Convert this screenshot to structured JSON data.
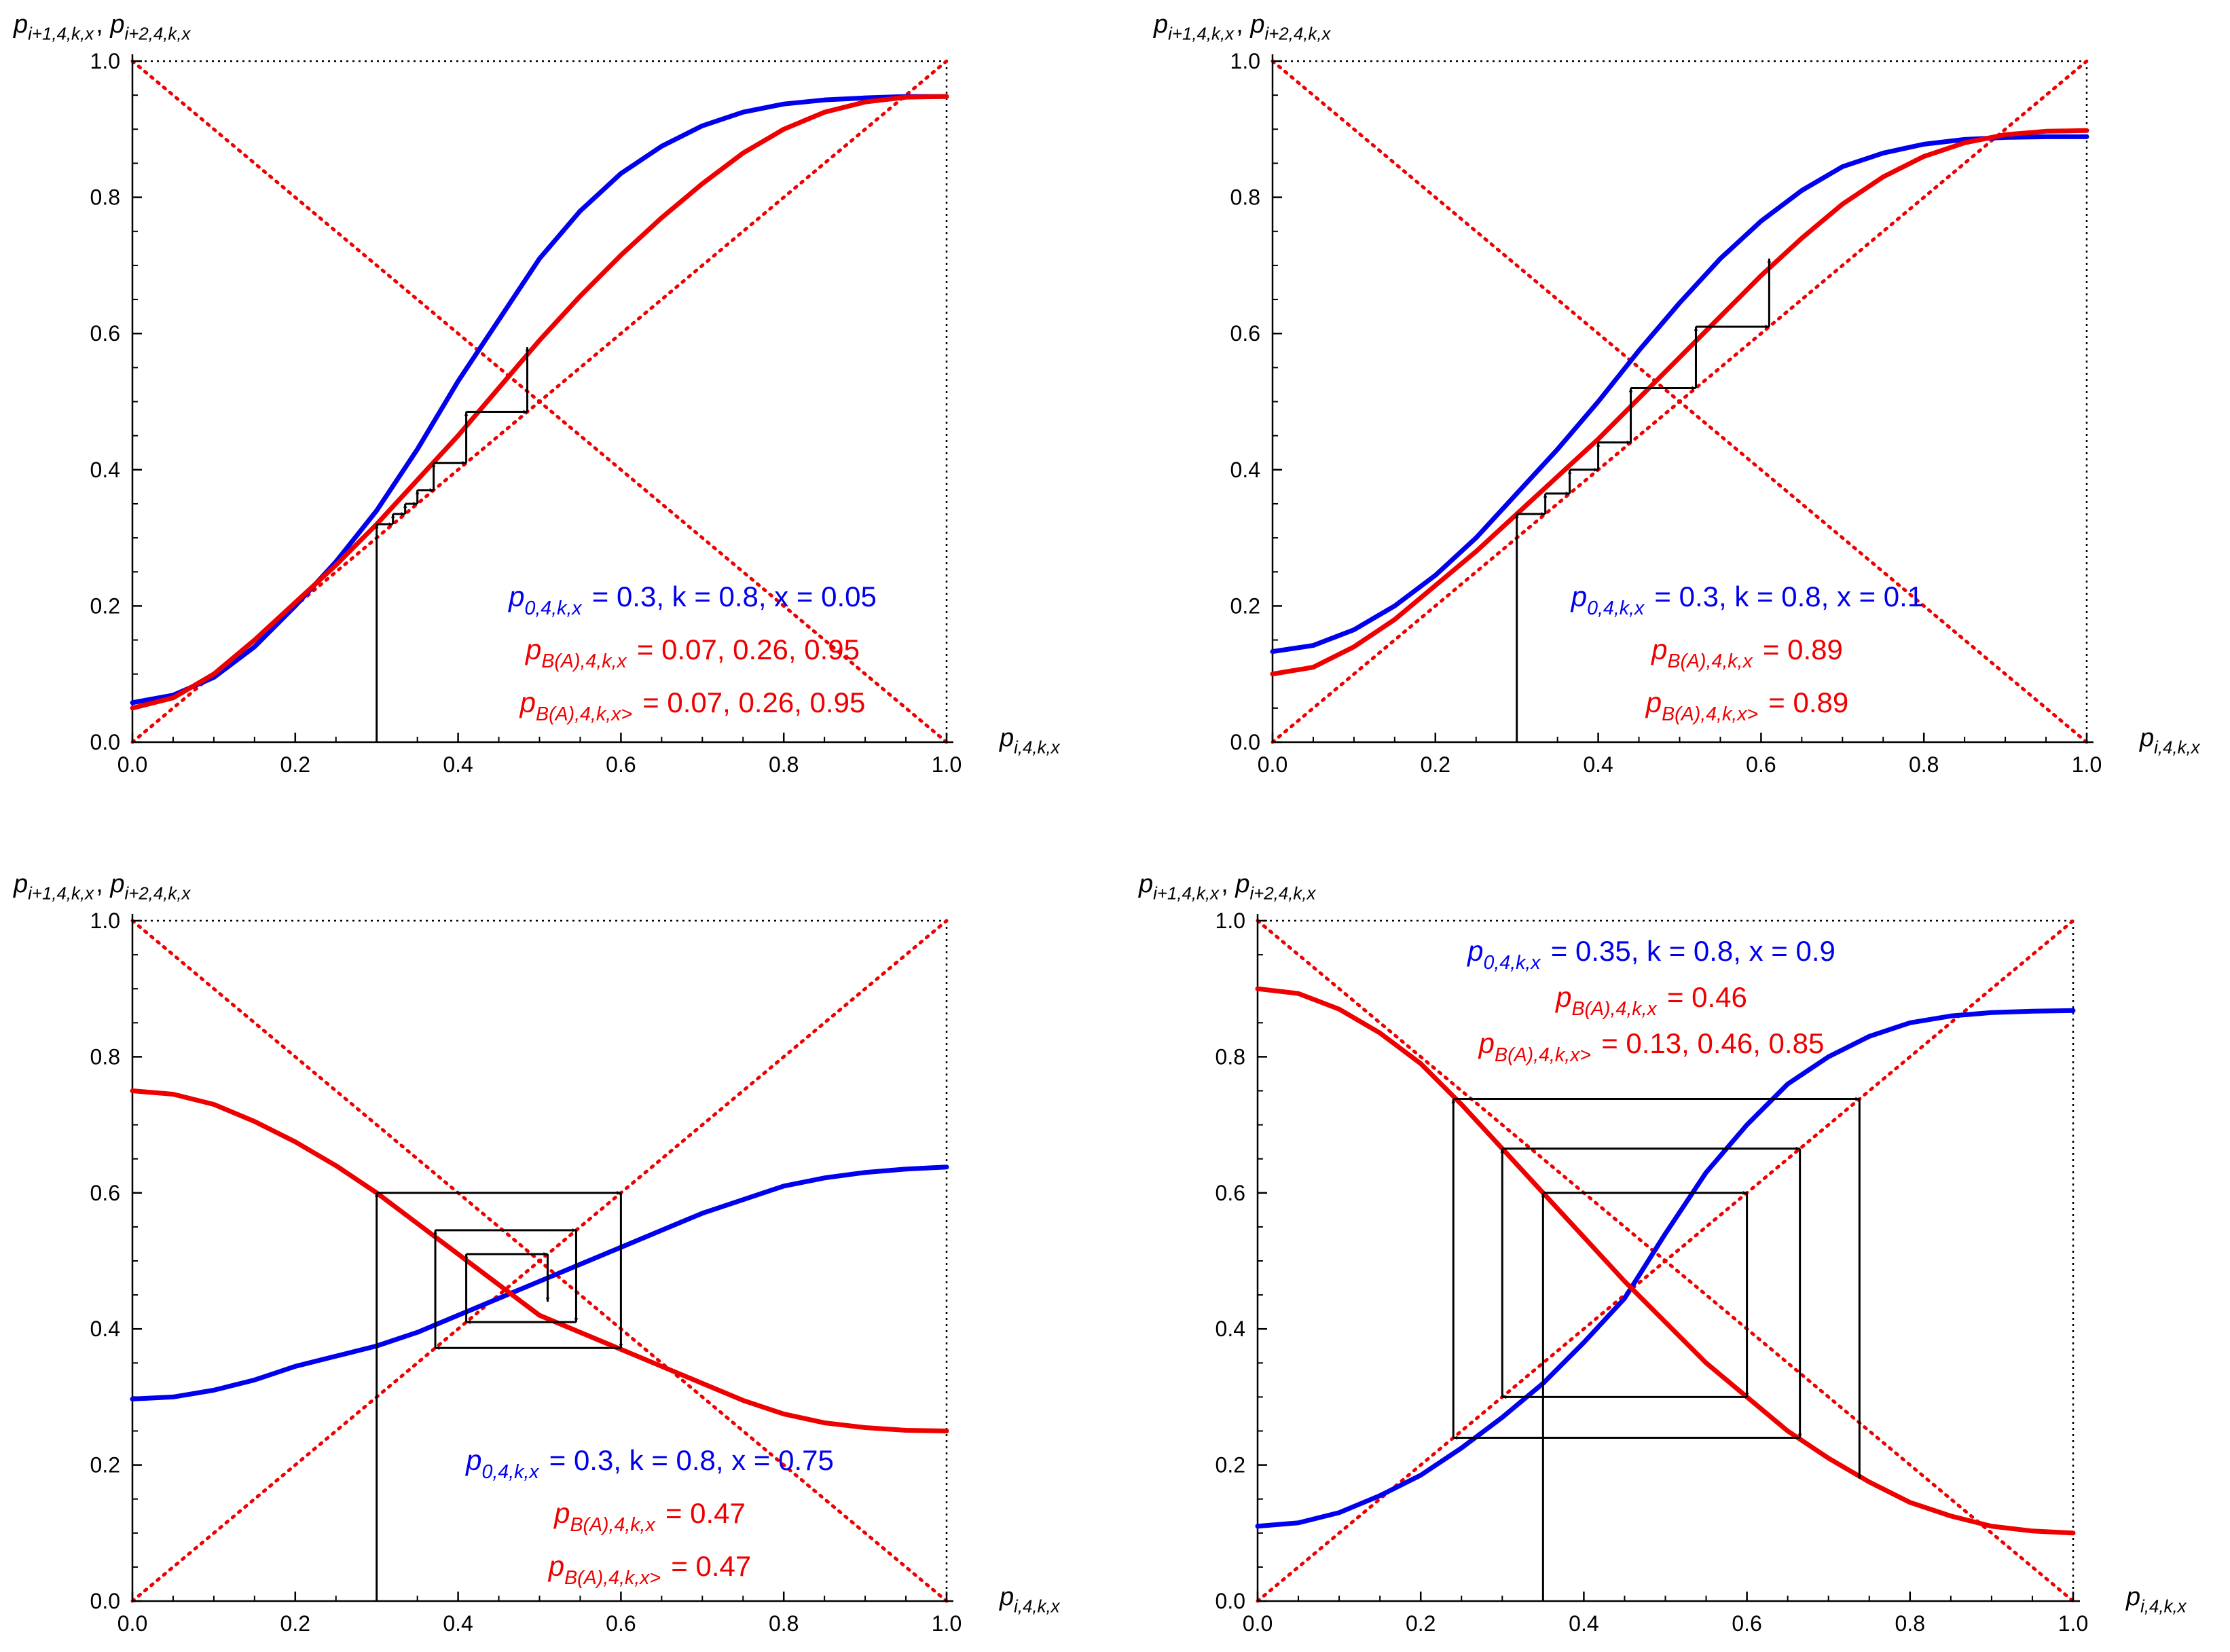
{
  "chart_data": [
    {
      "type": "line",
      "panel": "top-left",
      "xlabel": "p",
      "xlabel_sub": "i,4,k,x",
      "ylabel_parts": [
        {
          "t": "p",
          "sub": "i+1,4,k,x"
        },
        {
          "t": ", "
        },
        {
          "t": "p",
          "sub": "i+2,4,k,x"
        }
      ],
      "xlim": [
        0,
        1
      ],
      "ylim": [
        0,
        1
      ],
      "xticks": [
        "0.0",
        "0.2",
        "0.4",
        "0.6",
        "0.8",
        "1.0"
      ],
      "yticks": [
        "0.0",
        "0.2",
        "0.4",
        "0.6",
        "0.8",
        "1.0"
      ],
      "params": {
        "p0": 0.3,
        "k": 0.8,
        "x": 0.05
      },
      "series": [
        {
          "name": "p_i+2 (blue)",
          "color": "#0000ee",
          "width": 7,
          "x": [
            0,
            0.05,
            0.1,
            0.15,
            0.2,
            0.25,
            0.3,
            0.35,
            0.4,
            0.45,
            0.5,
            0.55,
            0.6,
            0.65,
            0.7,
            0.75,
            0.8,
            0.85,
            0.9,
            0.95,
            1.0
          ],
          "y": [
            0.058,
            0.069,
            0.095,
            0.14,
            0.2,
            0.265,
            0.34,
            0.43,
            0.53,
            0.62,
            0.71,
            0.78,
            0.835,
            0.875,
            0.905,
            0.925,
            0.937,
            0.943,
            0.946,
            0.948,
            0.948
          ]
        },
        {
          "name": "p_i+1 (red)",
          "color": "#ee0000",
          "width": 7,
          "x": [
            0,
            0.05,
            0.1,
            0.15,
            0.2,
            0.25,
            0.3,
            0.35,
            0.4,
            0.45,
            0.5,
            0.55,
            0.6,
            0.65,
            0.7,
            0.75,
            0.8,
            0.85,
            0.9,
            0.95,
            1.0
          ],
          "y": [
            0.05,
            0.065,
            0.1,
            0.15,
            0.205,
            0.26,
            0.32,
            0.385,
            0.45,
            0.52,
            0.59,
            0.655,
            0.715,
            0.77,
            0.82,
            0.865,
            0.9,
            0.925,
            0.94,
            0.947,
            0.948
          ]
        }
      ],
      "annotations": [
        {
          "color": "#0000ee",
          "parts": [
            {
              "t": "p",
              "sub": "0,4,k,x"
            },
            {
              "t": " = 0.3, k = 0.8, x = 0.05"
            }
          ]
        },
        {
          "color": "#ee0000",
          "parts": [
            {
              "t": "p",
              "sub": "B(A),4,k,x"
            },
            {
              "t": " = 0.07, 0.26, 0.95"
            }
          ]
        },
        {
          "color": "#ee0000",
          "parts": [
            {
              "t": "p",
              "sub": "B(A),4,k,x>"
            },
            {
              "t": " = 0.07, 0.26, 0.95"
            }
          ]
        }
      ],
      "cobweb": {
        "start": 0.3,
        "steps": [
          [
            0.3,
            0.32
          ],
          [
            0.32,
            0.335
          ],
          [
            0.335,
            0.35
          ],
          [
            0.35,
            0.37
          ],
          [
            0.37,
            0.41
          ],
          [
            0.41,
            0.485
          ],
          [
            0.485,
            0.58
          ]
        ]
      }
    },
    {
      "type": "line",
      "panel": "top-right",
      "xlabel": "p",
      "xlabel_sub": "i,4,k,x",
      "ylabel_parts": [
        {
          "t": "p",
          "sub": "i+1,4,k,x"
        },
        {
          "t": ", "
        },
        {
          "t": "p",
          "sub": "i+2,4,k,x"
        }
      ],
      "xlim": [
        0,
        1
      ],
      "ylim": [
        0,
        1
      ],
      "xticks": [
        "0.0",
        "0.2",
        "0.4",
        "0.6",
        "0.8",
        "1.0"
      ],
      "yticks": [
        "0.0",
        "0.2",
        "0.4",
        "0.6",
        "0.8",
        "1.0"
      ],
      "params": {
        "p0": 0.3,
        "k": 0.8,
        "x": 0.1
      },
      "series": [
        {
          "name": "p_i+2 (blue)",
          "color": "#0000ee",
          "width": 7,
          "x": [
            0,
            0.05,
            0.1,
            0.15,
            0.2,
            0.25,
            0.3,
            0.35,
            0.4,
            0.45,
            0.5,
            0.55,
            0.6,
            0.65,
            0.7,
            0.75,
            0.8,
            0.85,
            0.9,
            0.95,
            1.0
          ],
          "y": [
            0.133,
            0.142,
            0.165,
            0.2,
            0.245,
            0.3,
            0.365,
            0.43,
            0.5,
            0.575,
            0.645,
            0.71,
            0.765,
            0.81,
            0.845,
            0.865,
            0.878,
            0.885,
            0.888,
            0.889,
            0.889
          ]
        },
        {
          "name": "p_i+1 (red)",
          "color": "#ee0000",
          "width": 7,
          "x": [
            0,
            0.05,
            0.1,
            0.15,
            0.2,
            0.25,
            0.3,
            0.35,
            0.4,
            0.45,
            0.5,
            0.55,
            0.6,
            0.65,
            0.7,
            0.75,
            0.8,
            0.85,
            0.9,
            0.95,
            1.0
          ],
          "y": [
            0.1,
            0.11,
            0.14,
            0.18,
            0.23,
            0.28,
            0.335,
            0.39,
            0.445,
            0.505,
            0.565,
            0.625,
            0.685,
            0.74,
            0.79,
            0.83,
            0.86,
            0.88,
            0.892,
            0.897,
            0.898
          ]
        }
      ],
      "annotations": [
        {
          "color": "#0000ee",
          "parts": [
            {
              "t": "p",
              "sub": "0,4,k,x"
            },
            {
              "t": " = 0.3, k = 0.8, x = 0.1"
            }
          ]
        },
        {
          "color": "#ee0000",
          "parts": [
            {
              "t": "p",
              "sub": "B(A),4,k,x"
            },
            {
              "t": " = 0.89"
            }
          ]
        },
        {
          "color": "#ee0000",
          "parts": [
            {
              "t": "p",
              "sub": "B(A),4,k,x>"
            },
            {
              "t": " = 0.89"
            }
          ]
        }
      ],
      "cobweb": {
        "start": 0.3,
        "steps": [
          [
            0.3,
            0.335
          ],
          [
            0.335,
            0.365
          ],
          [
            0.365,
            0.4
          ],
          [
            0.4,
            0.44
          ],
          [
            0.44,
            0.52
          ],
          [
            0.52,
            0.61
          ],
          [
            0.61,
            0.71
          ]
        ]
      }
    },
    {
      "type": "line",
      "panel": "bottom-left",
      "xlabel": "p",
      "xlabel_sub": "i,4,k,x",
      "ylabel_parts": [
        {
          "t": "p",
          "sub": "i+1,4,k,x"
        },
        {
          "t": ", "
        },
        {
          "t": "p",
          "sub": "i+2,4,k,x"
        }
      ],
      "xlim": [
        0,
        1
      ],
      "ylim": [
        0,
        1
      ],
      "xticks": [
        "0.0",
        "0.2",
        "0.4",
        "0.6",
        "0.8",
        "1.0"
      ],
      "yticks": [
        "0.0",
        "0.2",
        "0.4",
        "0.6",
        "0.8",
        "1.0"
      ],
      "params": {
        "p0": 0.3,
        "k": 0.8,
        "x": 0.75
      },
      "series": [
        {
          "name": "p_i+2 (blue)",
          "color": "#0000ee",
          "width": 7,
          "x": [
            0,
            0.05,
            0.1,
            0.15,
            0.2,
            0.25,
            0.3,
            0.35,
            0.4,
            0.45,
            0.5,
            0.55,
            0.6,
            0.65,
            0.7,
            0.75,
            0.8,
            0.85,
            0.9,
            0.95,
            1.0
          ],
          "y": [
            0.297,
            0.3,
            0.31,
            0.325,
            0.345,
            0.36,
            0.375,
            0.395,
            0.42,
            0.445,
            0.47,
            0.495,
            0.52,
            0.545,
            0.57,
            0.59,
            0.61,
            0.622,
            0.63,
            0.635,
            0.638
          ]
        },
        {
          "name": "p_i+1 (red)",
          "color": "#ee0000",
          "width": 7,
          "x": [
            0,
            0.05,
            0.1,
            0.15,
            0.2,
            0.25,
            0.3,
            0.35,
            0.4,
            0.45,
            0.5,
            0.55,
            0.6,
            0.65,
            0.7,
            0.75,
            0.8,
            0.85,
            0.9,
            0.95,
            1.0
          ],
          "y": [
            0.75,
            0.745,
            0.73,
            0.705,
            0.675,
            0.64,
            0.6,
            0.555,
            0.51,
            0.465,
            0.42,
            0.395,
            0.37,
            0.345,
            0.32,
            0.295,
            0.275,
            0.262,
            0.255,
            0.251,
            0.25
          ]
        }
      ],
      "annotations": [
        {
          "color": "#0000ee",
          "parts": [
            {
              "t": "p",
              "sub": "0,4,k,x"
            },
            {
              "t": " = 0.3, k = 0.8, x = 0.75"
            }
          ]
        },
        {
          "color": "#ee0000",
          "parts": [
            {
              "t": "p",
              "sub": "B(A),4,k,x"
            },
            {
              "t": " = 0.47"
            }
          ]
        },
        {
          "color": "#ee0000",
          "parts": [
            {
              "t": "p",
              "sub": "B(A),4,k,x>"
            },
            {
              "t": " = 0.47"
            }
          ]
        }
      ],
      "cobweb": {
        "start": 0.3,
        "steps": [
          [
            0.3,
            0.6
          ],
          [
            0.6,
            0.372
          ],
          [
            0.372,
            0.545
          ],
          [
            0.545,
            0.41
          ],
          [
            0.41,
            0.51
          ],
          [
            0.51,
            0.44
          ]
        ]
      }
    },
    {
      "type": "line",
      "panel": "bottom-right",
      "xlabel": "p",
      "xlabel_sub": "i,4,k,x",
      "ylabel_parts": [
        {
          "t": "p",
          "sub": "i+1,4,k,x"
        },
        {
          "t": ", "
        },
        {
          "t": "p",
          "sub": "i+2,4,k,x"
        }
      ],
      "xlim": [
        0,
        1
      ],
      "ylim": [
        0,
        1
      ],
      "xticks": [
        "0.0",
        "0.2",
        "0.4",
        "0.6",
        "0.8",
        "1.0"
      ],
      "yticks": [
        "0.0",
        "0.2",
        "0.4",
        "0.6",
        "0.8",
        "1.0"
      ],
      "params": {
        "p0": 0.35,
        "k": 0.8,
        "x": 0.9
      },
      "series": [
        {
          "name": "p_i+2 (blue)",
          "color": "#0000ee",
          "width": 7,
          "x": [
            0,
            0.05,
            0.1,
            0.15,
            0.2,
            0.25,
            0.3,
            0.35,
            0.4,
            0.45,
            0.5,
            0.55,
            0.6,
            0.65,
            0.7,
            0.75,
            0.8,
            0.85,
            0.9,
            0.95,
            1.0
          ],
          "y": [
            0.11,
            0.115,
            0.13,
            0.155,
            0.185,
            0.225,
            0.27,
            0.32,
            0.38,
            0.445,
            0.54,
            0.63,
            0.7,
            0.76,
            0.8,
            0.83,
            0.85,
            0.86,
            0.865,
            0.867,
            0.868
          ]
        },
        {
          "name": "p_i+1 (red)",
          "color": "#ee0000",
          "width": 7,
          "x": [
            0,
            0.05,
            0.1,
            0.15,
            0.2,
            0.25,
            0.3,
            0.35,
            0.4,
            0.45,
            0.5,
            0.55,
            0.6,
            0.65,
            0.7,
            0.75,
            0.8,
            0.85,
            0.9,
            0.95,
            1.0
          ],
          "y": [
            0.9,
            0.893,
            0.87,
            0.835,
            0.79,
            0.73,
            0.665,
            0.6,
            0.535,
            0.47,
            0.41,
            0.35,
            0.3,
            0.25,
            0.21,
            0.175,
            0.145,
            0.125,
            0.11,
            0.103,
            0.1
          ]
        }
      ],
      "annotations": [
        {
          "color": "#0000ee",
          "parts": [
            {
              "t": "p",
              "sub": "0,4,k,x"
            },
            {
              "t": " = 0.35, k = 0.8, x = 0.9"
            }
          ]
        },
        {
          "color": "#ee0000",
          "parts": [
            {
              "t": "p",
              "sub": "B(A),4,k,x"
            },
            {
              "t": " = 0.46"
            }
          ]
        },
        {
          "color": "#ee0000",
          "parts": [
            {
              "t": "p",
              "sub": "B(A),4,k,x>"
            },
            {
              "t": " = 0.13, 0.46, 0.85"
            }
          ]
        }
      ],
      "cobweb": {
        "start": 0.35,
        "steps": [
          [
            0.35,
            0.6
          ],
          [
            0.6,
            0.3
          ],
          [
            0.3,
            0.665
          ],
          [
            0.665,
            0.24
          ],
          [
            0.24,
            0.738
          ],
          [
            0.738,
            0.18
          ]
        ]
      }
    }
  ],
  "colors": {
    "blue": "#0000ee",
    "red": "#ee0000",
    "axis": "#000000"
  }
}
